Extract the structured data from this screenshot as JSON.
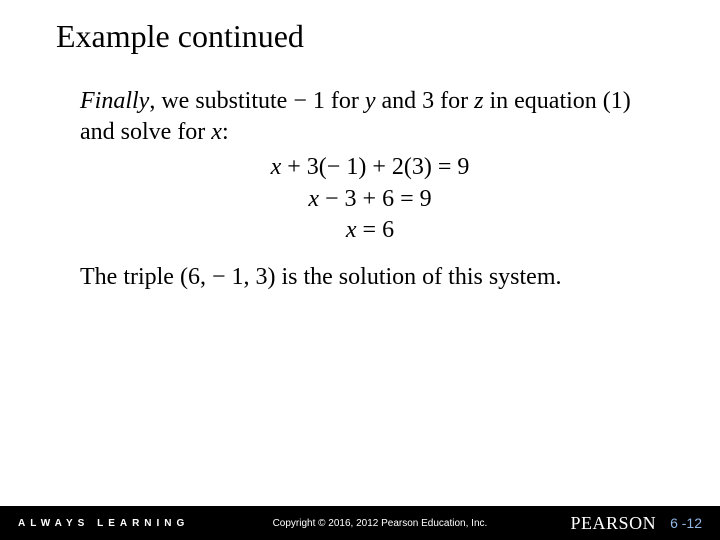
{
  "title": "Example continued",
  "para1_prefix": "Finally",
  "para1_mid1": ", we substitute − 1 for ",
  "para1_y": "y",
  "para1_mid2": " and 3 for ",
  "para1_z": "z",
  "para1_mid3": " in equation (1) and solve for ",
  "para1_x": "x",
  "para1_end": ":",
  "eq1_x": "x",
  "eq1_rest": " + 3(− 1) + 2(3) = 9",
  "eq2_x": "x",
  "eq2_rest": " − 3 + 6 = 9",
  "eq3_x": "x",
  "eq3_rest": " = 6",
  "para2": "The triple (6, − 1, 3) is the solution of this system.",
  "footer": {
    "always": "ALWAYS LEARNING",
    "copyright": "Copyright © 2016, 2012  Pearson Education, Inc.",
    "brand": "PEARSON",
    "slide_num": "6 -12"
  },
  "colors": {
    "background": "#ffffff",
    "text": "#000000",
    "footer_bg": "#000000",
    "footer_text": "#ffffff",
    "slidenum": "#91b6e3"
  },
  "fontsizes": {
    "title": 32,
    "body": 24,
    "always": 10,
    "copyright": 10,
    "brand": 18,
    "slidenum": 14
  }
}
